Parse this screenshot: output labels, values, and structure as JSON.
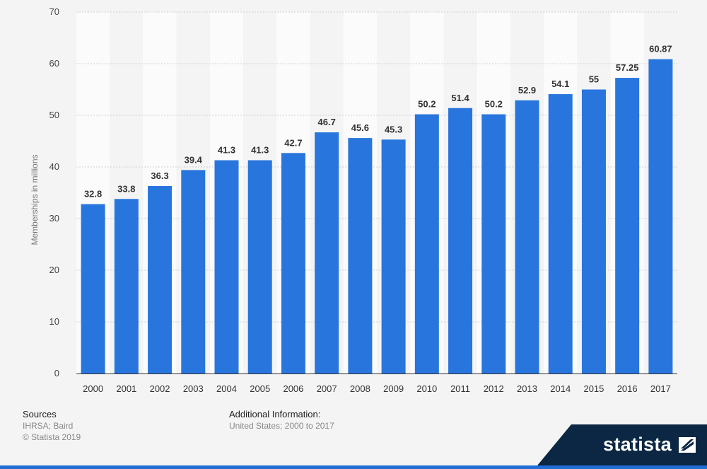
{
  "chart_data": {
    "type": "bar",
    "categories": [
      "2000",
      "2001",
      "2002",
      "2003",
      "2004",
      "2005",
      "2006",
      "2007",
      "2008",
      "2009",
      "2010",
      "2011",
      "2012",
      "2013",
      "2014",
      "2015",
      "2016",
      "2017"
    ],
    "values": [
      32.8,
      33.8,
      36.3,
      39.4,
      41.3,
      41.3,
      42.7,
      46.7,
      45.6,
      45.3,
      50.2,
      51.4,
      50.2,
      52.9,
      54.1,
      55,
      57.25,
      60.87
    ],
    "value_labels": [
      "32.8",
      "33.8",
      "36.3",
      "39.4",
      "41.3",
      "41.3",
      "42.7",
      "46.7",
      "45.6",
      "45.3",
      "50.2",
      "51.4",
      "50.2",
      "52.9",
      "54.1",
      "55",
      "57.25",
      "60.87"
    ],
    "ylabel": "Memberships in millions",
    "ylim": [
      0,
      70
    ],
    "yticks": [
      0,
      10,
      20,
      30,
      40,
      50,
      60,
      70
    ],
    "grid": true,
    "bar_color": "#2876dd"
  },
  "footer": {
    "sources_title": "Sources",
    "sources_text": "IHRSA; Baird",
    "copyright": "© Statista 2019",
    "additional_title": "Additional Information:",
    "additional_text": "United States; 2000 to 2017"
  },
  "brand": {
    "logo_text": "statista",
    "logo_icon": "statista-mark-icon",
    "accent_color": "#1f6fd6",
    "logo_bg": "#0b2744"
  }
}
